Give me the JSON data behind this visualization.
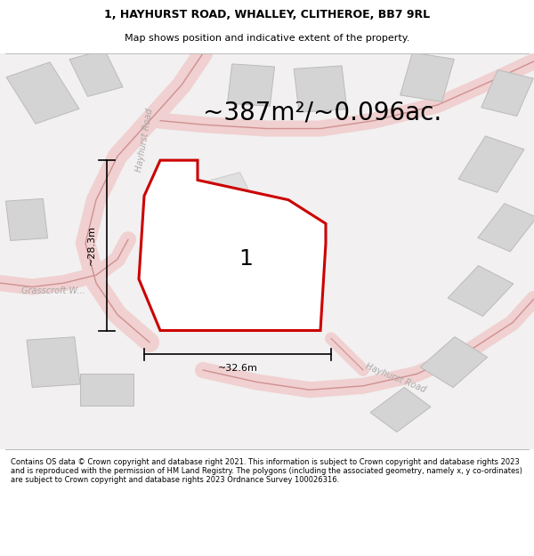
{
  "title": "1, HAYHURST ROAD, WHALLEY, CLITHEROE, BB7 9RL",
  "subtitle": "Map shows position and indicative extent of the property.",
  "footer": "Contains OS data © Crown copyright and database right 2021. This information is subject to Crown copyright and database rights 2023 and is reproduced with the permission of HM Land Registry. The polygons (including the associated geometry, namely x, y co-ordinates) are subject to Crown copyright and database rights 2023 Ordnance Survey 100026316.",
  "area_label": "~387m²/~0.096ac.",
  "plot_number": "1",
  "dim_horizontal": "~32.6m",
  "dim_vertical": "~28.3m",
  "road_label_hayhurst_top": "Hayhurst Road",
  "road_label_hayhurst_bot": "Hayhurst Road",
  "road_label_grasscroft": "Grasscroft W...",
  "bg_color": "#ffffff",
  "map_bg": "#f2f0f0",
  "plot_fill": "#ffffff",
  "plot_edge": "#cc0000",
  "road_fill": "#f0d0d0",
  "road_edge": "#d09090",
  "building_color": "#d4d4d4",
  "building_edge": "#bbbbbb",
  "title_fontsize": 9,
  "subtitle_fontsize": 8,
  "footer_fontsize": 6,
  "area_fontsize": 20,
  "dim_fontsize": 8,
  "road_label_fontsize": 7,
  "plot_label_fontsize": 18
}
